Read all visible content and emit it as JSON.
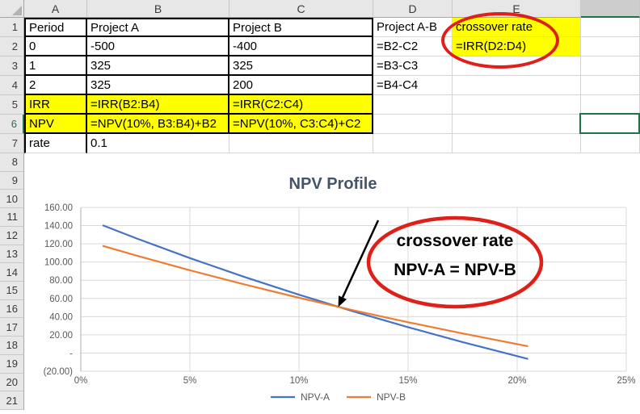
{
  "sheet": {
    "col_headers": [
      "A",
      "B",
      "C",
      "D",
      "E",
      ""
    ],
    "row_count": 21,
    "selected_cell": "F6",
    "selected_row": "6",
    "selected_col": "F",
    "cells": {
      "a1": "Period",
      "b1": "Project A",
      "c1": "Project B",
      "d1": "Project A-B",
      "e1": "crossover rate",
      "a2": "0",
      "b2": "-500",
      "c2": "-400",
      "d2": "=B2-C2",
      "e2": "=IRR(D2:D4)",
      "a3": "1",
      "b3": "325",
      "c3": "325",
      "d3": "=B3-C3",
      "a4": "2",
      "b4": "325",
      "c4": "200",
      "d4": "=B4-C4",
      "a5": "IRR",
      "b5": "=IRR(B2:B4)",
      "c5": "=IRR(C2:C4)",
      "a6": "NPV",
      "b6": "=NPV(10%, B3:B4)+B2",
      "c6": "=NPV(10%, C3:C4)+C2",
      "a7": "rate",
      "b7": "0.1"
    }
  },
  "chart_data": {
    "type": "line",
    "title": "NPV Profile",
    "xlabel": "",
    "ylabel": "",
    "xlim": [
      0,
      25
    ],
    "ylim": [
      -20,
      160
    ],
    "grid": true,
    "legend_position": "bottom",
    "x_tick_values": [
      0,
      5,
      10,
      15,
      20,
      25
    ],
    "x_tick_labels": [
      "0%",
      "5%",
      "10%",
      "15%",
      "20%",
      "25%"
    ],
    "y_tick_values": [
      160,
      140,
      120,
      100,
      80,
      60,
      40,
      20,
      0,
      -20
    ],
    "y_tick_labels": [
      "160.00",
      "140.00",
      "120.00",
      "100.00",
      "80.00",
      "60.00",
      "40.00",
      "20.00",
      "-",
      "(20.00)"
    ],
    "series": [
      {
        "name": "NPV-A",
        "color": "#4472C4",
        "points": [
          [
            1,
            140.4
          ],
          [
            2.5,
            126.4
          ],
          [
            5,
            104.3
          ],
          [
            7.5,
            83.6
          ],
          [
            10,
            64.1
          ],
          [
            12.5,
            45.7
          ],
          [
            15,
            28.4
          ],
          [
            17.5,
            12.0
          ],
          [
            20.5,
            -6.5
          ]
        ]
      },
      {
        "name": "NPV-B",
        "color": "#ED7D31",
        "points": [
          [
            1,
            117.8
          ],
          [
            2.5,
            107.4
          ],
          [
            5,
            90.9
          ],
          [
            7.5,
            75.4
          ],
          [
            10,
            60.7
          ],
          [
            12.5,
            46.9
          ],
          [
            15,
            33.8
          ],
          [
            17.5,
            21.5
          ],
          [
            20.5,
            7.4
          ]
        ]
      }
    ],
    "annotations": {
      "label_line1": "crossover rate",
      "label_line2": "NPV-A = NPV-B",
      "arrow_target": [
        11.8,
        50.6
      ]
    }
  },
  "colors": {
    "highlight_yellow": "#FFFF00",
    "annotation_red": "#E02018",
    "excel_green": "#217346",
    "series_blue": "#4472C4",
    "series_orange": "#ED7D31",
    "chart_title": "#44546A",
    "axis_text": "#595959",
    "gridline": "#D9D9D9",
    "axis_line": "#BFBFBF"
  }
}
